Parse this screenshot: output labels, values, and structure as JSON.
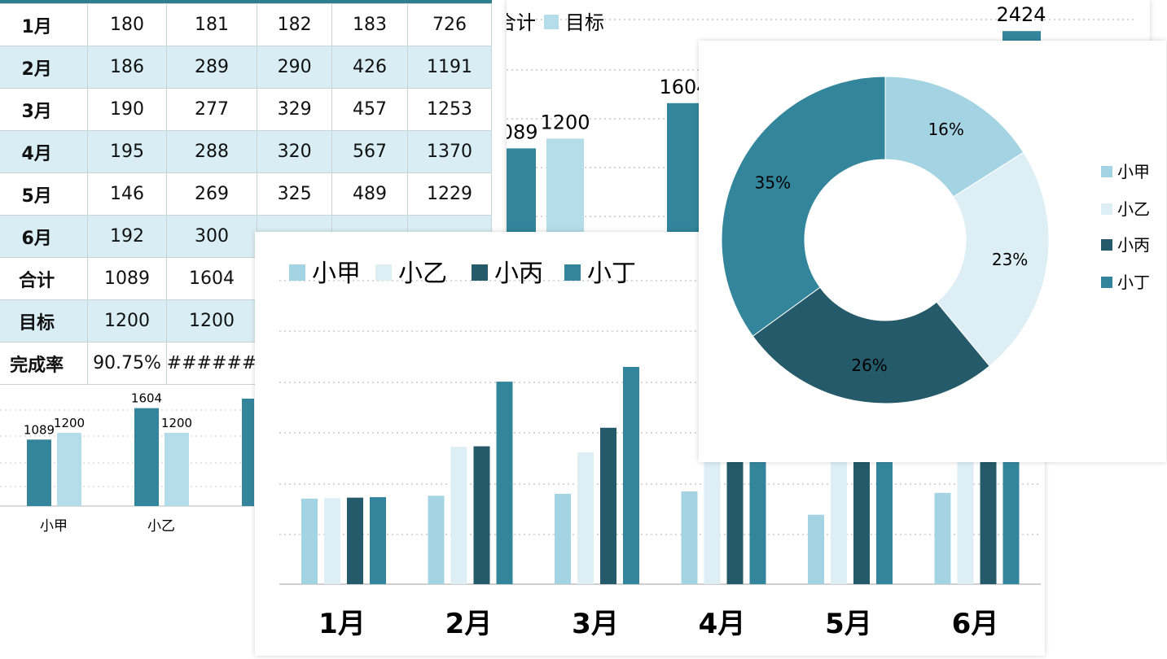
{
  "colors": {
    "xiaojia": "#a4d4e3",
    "xiaoyi": "#ddeef5",
    "xiaobing": "#245a69",
    "xiaoding": "#33859c",
    "mubiao": "#b5dde9",
    "table_header": "#2e7d91",
    "table_alt": "#d9eef4"
  },
  "table": {
    "rows": [
      {
        "label": "1月",
        "cells": [
          "180",
          "181",
          "182",
          "183",
          "726"
        ]
      },
      {
        "label": "2月",
        "cells": [
          "186",
          "289",
          "290",
          "426",
          "1191"
        ]
      },
      {
        "label": "3月",
        "cells": [
          "190",
          "277",
          "329",
          "457",
          "1253"
        ]
      },
      {
        "label": "4月",
        "cells": [
          "195",
          "288",
          "320",
          "567",
          "1370"
        ]
      },
      {
        "label": "5月",
        "cells": [
          "146",
          "269",
          "325",
          "489",
          "1229"
        ]
      },
      {
        "label": "6月",
        "cells": [
          "192",
          "300",
          "",
          "",
          ""
        ]
      },
      {
        "label": "合计",
        "cells": [
          "1089",
          "1604",
          "",
          "",
          ""
        ]
      },
      {
        "label": "目标",
        "cells": [
          "1200",
          "1200",
          "",
          "",
          ""
        ]
      },
      {
        "label": "完成率",
        "cells": [
          "90.75%",
          "######",
          "",
          "",
          ""
        ]
      }
    ]
  },
  "chart_data": [
    {
      "type": "bar",
      "name_id": "grouped-monthly",
      "categories": [
        "1月",
        "2月",
        "3月",
        "4月",
        "5月",
        "6月"
      ],
      "legend": [
        "小甲",
        "小乙",
        "小丙",
        "小丁"
      ],
      "series": [
        {
          "name": "小甲",
          "values": [
            180,
            186,
            190,
            195,
            146,
            192
          ]
        },
        {
          "name": "小乙",
          "values": [
            181,
            289,
            277,
            288,
            269,
            300
          ]
        },
        {
          "name": "小丙",
          "values": [
            182,
            290,
            329,
            320,
            325,
            301
          ]
        },
        {
          "name": "小丁",
          "values": [
            183,
            426,
            457,
            567,
            489,
            480
          ]
        }
      ],
      "ylim": [
        0,
        600
      ],
      "grid": true
    },
    {
      "type": "pie",
      "name_id": "donut-share",
      "labels": [
        "小甲",
        "小乙",
        "小丙",
        "小丁"
      ],
      "values": [
        16,
        23,
        26,
        35
      ],
      "value_labels": [
        "16%",
        "23%",
        "26%",
        "35%"
      ],
      "legend": "right"
    },
    {
      "type": "bar",
      "name_id": "total-vs-target-large",
      "legend": [
        "合计",
        "目标"
      ],
      "series": [
        {
          "name": "合计",
          "values": [
            1089,
            1604,
            2424
          ]
        },
        {
          "name": "目标",
          "values": [
            1200
          ]
        }
      ],
      "value_labels": [
        "1089",
        "1200",
        "1604",
        "2424"
      ],
      "ylim": [
        0,
        2500
      ]
    },
    {
      "type": "bar",
      "name_id": "total-vs-target-small",
      "categories": [
        "小甲",
        "小乙"
      ],
      "series": [
        {
          "name": "合计",
          "values": [
            1089,
            1604
          ]
        },
        {
          "name": "目标",
          "values": [
            1200,
            1200
          ]
        }
      ],
      "value_labels": [
        "1089",
        "1200",
        "1604",
        "1200"
      ],
      "ylim": [
        0,
        1800
      ]
    }
  ]
}
